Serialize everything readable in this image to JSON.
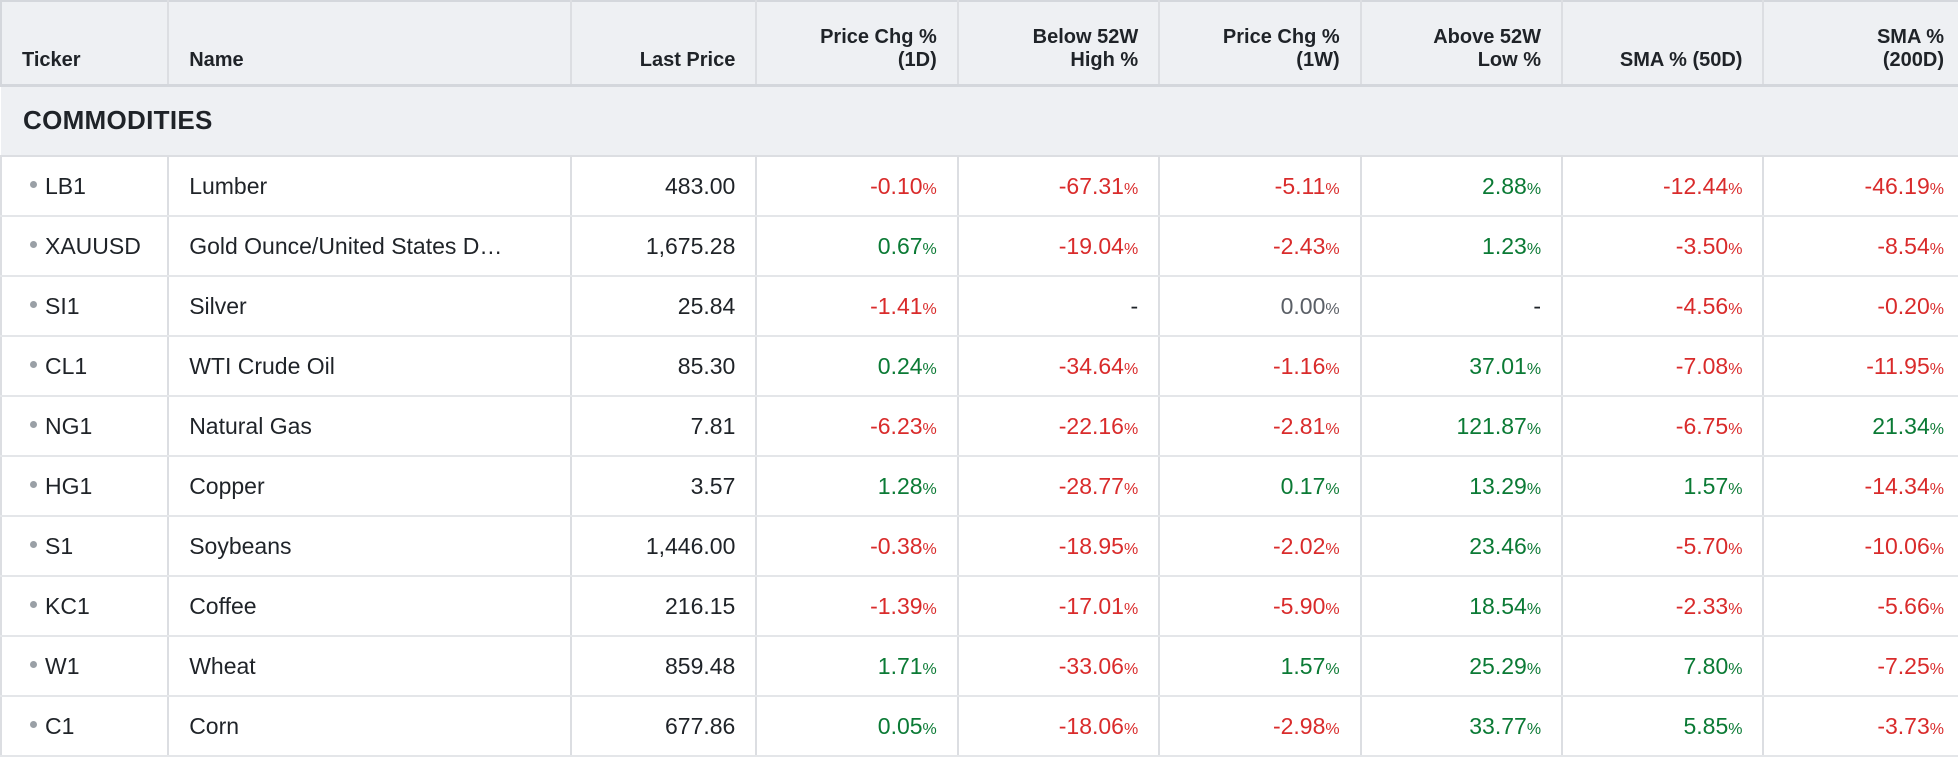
{
  "table": {
    "columns": [
      "Ticker",
      "Name",
      "Last Price",
      "Price Chg %\n(1D)",
      "Below 52W\nHigh %",
      "Price Chg %\n(1W)",
      "Above 52W\nLow %",
      "SMA % (50D)",
      "SMA %\n(200D)"
    ],
    "section_title": "COMMODITIES",
    "colors": {
      "positive": "#0b7a35",
      "negative": "#d92b2b",
      "neutral": "#5a5f66"
    },
    "rows": [
      {
        "ticker": "LB1",
        "name": "Lumber",
        "last": "483.00",
        "vals": [
          "-0.10",
          "-67.31",
          "-5.11",
          "2.88",
          "-12.44",
          "-46.19"
        ]
      },
      {
        "ticker": "XAUUSD",
        "name": "Gold Ounce/United States D…",
        "last": "1,675.28",
        "vals": [
          "0.67",
          "-19.04",
          "-2.43",
          "1.23",
          "-3.50",
          "-8.54"
        ]
      },
      {
        "ticker": "SI1",
        "name": "Silver",
        "last": "25.84",
        "vals": [
          "-1.41",
          "-",
          "0.00",
          "-",
          "-4.56",
          "-0.20"
        ]
      },
      {
        "ticker": "CL1",
        "name": "WTI Crude Oil",
        "last": "85.30",
        "vals": [
          "0.24",
          "-34.64",
          "-1.16",
          "37.01",
          "-7.08",
          "-11.95"
        ]
      },
      {
        "ticker": "NG1",
        "name": "Natural Gas",
        "last": "7.81",
        "vals": [
          "-6.23",
          "-22.16",
          "-2.81",
          "121.87",
          "-6.75",
          "21.34"
        ]
      },
      {
        "ticker": "HG1",
        "name": "Copper",
        "last": "3.57",
        "vals": [
          "1.28",
          "-28.77",
          "0.17",
          "13.29",
          "1.57",
          "-14.34"
        ]
      },
      {
        "ticker": "S1",
        "name": "Soybeans",
        "last": "1,446.00",
        "vals": [
          "-0.38",
          "-18.95",
          "-2.02",
          "23.46",
          "-5.70",
          "-10.06"
        ]
      },
      {
        "ticker": "KC1",
        "name": "Coffee",
        "last": "216.15",
        "vals": [
          "-1.39",
          "-17.01",
          "-5.90",
          "18.54",
          "-2.33",
          "-5.66"
        ]
      },
      {
        "ticker": "W1",
        "name": "Wheat",
        "last": "859.48",
        "vals": [
          "1.71",
          "-33.06",
          "1.57",
          "25.29",
          "7.80",
          "-7.25"
        ]
      },
      {
        "ticker": "C1",
        "name": "Corn",
        "last": "677.86",
        "vals": [
          "0.05",
          "-18.06",
          "-2.98",
          "33.77",
          "5.85",
          "-3.73"
        ]
      }
    ]
  }
}
